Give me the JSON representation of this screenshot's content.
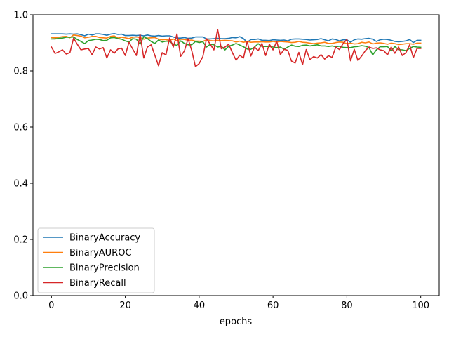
{
  "chart_data": {
    "type": "line",
    "title": "",
    "xlabel": "epochs",
    "ylabel": "",
    "xlim": [
      -5,
      105
    ],
    "ylim": [
      0.0,
      1.0
    ],
    "x_ticks": [
      0,
      20,
      40,
      60,
      80,
      100
    ],
    "y_ticks": [
      0.0,
      0.2,
      0.4,
      0.6,
      0.8,
      1.0
    ],
    "x_tick_labels": [
      "0",
      "20",
      "40",
      "60",
      "80",
      "100"
    ],
    "y_tick_labels": [
      "0.0",
      "0.2",
      "0.4",
      "0.6",
      "0.8",
      "1.0"
    ],
    "grid": false,
    "legend_position": "lower-left",
    "series": [
      {
        "name": "BinaryAccuracy",
        "color": "#1f77b4",
        "values": [
          0.932,
          0.932,
          0.932,
          0.932,
          0.931,
          0.932,
          0.931,
          0.932,
          0.929,
          0.925,
          0.931,
          0.928,
          0.932,
          0.932,
          0.93,
          0.927,
          0.931,
          0.933,
          0.93,
          0.931,
          0.926,
          0.926,
          0.927,
          0.926,
          0.927,
          0.925,
          0.928,
          0.925,
          0.924,
          0.926,
          0.924,
          0.925,
          0.925,
          0.921,
          0.917,
          0.917,
          0.919,
          0.916,
          0.917,
          0.921,
          0.921,
          0.921,
          0.914,
          0.914,
          0.915,
          0.916,
          0.915,
          0.915,
          0.916,
          0.919,
          0.918,
          0.922,
          0.915,
          0.902,
          0.912,
          0.912,
          0.914,
          0.909,
          0.909,
          0.908,
          0.911,
          0.91,
          0.909,
          0.91,
          0.907,
          0.913,
          0.914,
          0.914,
          0.913,
          0.912,
          0.91,
          0.911,
          0.912,
          0.915,
          0.911,
          0.907,
          0.914,
          0.912,
          0.907,
          0.911,
          0.911,
          0.902,
          0.911,
          0.914,
          0.913,
          0.915,
          0.916,
          0.913,
          0.905,
          0.911,
          0.913,
          0.912,
          0.909,
          0.905,
          0.904,
          0.905,
          0.907,
          0.912,
          0.901,
          0.909,
          0.909
        ]
      },
      {
        "name": "BinaryAUROC",
        "color": "#ff7f0e",
        "values": [
          0.919,
          0.918,
          0.92,
          0.922,
          0.923,
          0.918,
          0.928,
          0.926,
          0.924,
          0.918,
          0.92,
          0.923,
          0.923,
          0.919,
          0.918,
          0.917,
          0.923,
          0.925,
          0.917,
          0.92,
          0.918,
          0.915,
          0.92,
          0.921,
          0.919,
          0.913,
          0.917,
          0.918,
          0.919,
          0.913,
          0.911,
          0.912,
          0.908,
          0.914,
          0.907,
          0.913,
          0.912,
          0.909,
          0.91,
          0.906,
          0.906,
          0.905,
          0.911,
          0.908,
          0.907,
          0.909,
          0.908,
          0.909,
          0.908,
          0.907,
          0.903,
          0.906,
          0.902,
          0.905,
          0.902,
          0.903,
          0.903,
          0.904,
          0.903,
          0.903,
          0.905,
          0.903,
          0.905,
          0.904,
          0.903,
          0.901,
          0.902,
          0.905,
          0.902,
          0.901,
          0.899,
          0.897,
          0.899,
          0.9,
          0.902,
          0.898,
          0.898,
          0.901,
          0.903,
          0.902,
          0.897,
          0.899,
          0.896,
          0.897,
          0.902,
          0.9,
          0.903,
          0.896,
          0.899,
          0.9,
          0.898,
          0.895,
          0.899,
          0.897,
          0.894,
          0.895,
          0.897,
          0.897,
          0.895,
          0.899,
          0.899
        ]
      },
      {
        "name": "BinaryPrecision",
        "color": "#2ca02c",
        "values": [
          0.914,
          0.914,
          0.916,
          0.917,
          0.92,
          0.92,
          0.921,
          0.912,
          0.905,
          0.897,
          0.908,
          0.91,
          0.913,
          0.912,
          0.908,
          0.909,
          0.918,
          0.919,
          0.915,
          0.913,
          0.907,
          0.903,
          0.915,
          0.913,
          0.895,
          0.922,
          0.915,
          0.905,
          0.898,
          0.91,
          0.903,
          0.906,
          0.905,
          0.895,
          0.891,
          0.907,
          0.898,
          0.893,
          0.893,
          0.905,
          0.901,
          0.904,
          0.885,
          0.895,
          0.893,
          0.885,
          0.888,
          0.875,
          0.888,
          0.892,
          0.898,
          0.892,
          0.886,
          0.878,
          0.877,
          0.885,
          0.897,
          0.887,
          0.887,
          0.887,
          0.885,
          0.883,
          0.885,
          0.877,
          0.885,
          0.892,
          0.888,
          0.887,
          0.891,
          0.892,
          0.889,
          0.891,
          0.893,
          0.889,
          0.889,
          0.887,
          0.889,
          0.886,
          0.888,
          0.884,
          0.883,
          0.883,
          0.886,
          0.887,
          0.89,
          0.888,
          0.883,
          0.857,
          0.875,
          0.886,
          0.886,
          0.887,
          0.871,
          0.887,
          0.876,
          0.875,
          0.872,
          0.88,
          0.887,
          0.885,
          0.884
        ]
      },
      {
        "name": "BinaryRecall",
        "color": "#d62728",
        "values": [
          0.885,
          0.862,
          0.868,
          0.875,
          0.86,
          0.865,
          0.917,
          0.895,
          0.875,
          0.878,
          0.88,
          0.858,
          0.885,
          0.878,
          0.883,
          0.846,
          0.875,
          0.863,
          0.878,
          0.881,
          0.855,
          0.902,
          0.878,
          0.855,
          0.93,
          0.846,
          0.885,
          0.893,
          0.856,
          0.818,
          0.865,
          0.857,
          0.917,
          0.885,
          0.932,
          0.852,
          0.871,
          0.915,
          0.872,
          0.815,
          0.826,
          0.851,
          0.915,
          0.895,
          0.875,
          0.948,
          0.879,
          0.885,
          0.895,
          0.865,
          0.838,
          0.856,
          0.846,
          0.905,
          0.853,
          0.885,
          0.872,
          0.898,
          0.855,
          0.895,
          0.875,
          0.905,
          0.858,
          0.877,
          0.873,
          0.835,
          0.828,
          0.866,
          0.822,
          0.876,
          0.84,
          0.851,
          0.846,
          0.858,
          0.842,
          0.854,
          0.848,
          0.885,
          0.876,
          0.898,
          0.912,
          0.836,
          0.877,
          0.837,
          0.853,
          0.872,
          0.885,
          0.88,
          0.882,
          0.875,
          0.872,
          0.857,
          0.885,
          0.863,
          0.885,
          0.855,
          0.865,
          0.893,
          0.847,
          0.88,
          0.88
        ]
      }
    ]
  }
}
